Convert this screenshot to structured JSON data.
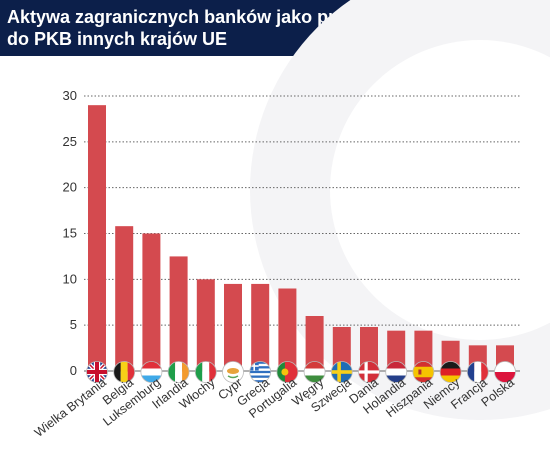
{
  "chart_data": {
    "type": "bar",
    "title_lines": [
      "Aktywa zagranicznych banków jako proporcja w stosunku",
      "do PKB innych krajów UE"
    ],
    "xlabel": "",
    "ylabel": "",
    "ylim": [
      0,
      30
    ],
    "yticks": [
      0,
      5,
      10,
      15,
      20,
      25,
      30
    ],
    "grid": true,
    "legend": "none",
    "bar_color": "#d44a4f",
    "categories": [
      "Wielka Brytania",
      "Belgia",
      "Luksemburg",
      "Irlandia",
      "Włochy",
      "Cypr",
      "Grecja",
      "Portugalia",
      "Węgry",
      "Szwecja",
      "Dania",
      "Holandia",
      "Hiszpania",
      "Niemcy",
      "Francja",
      "Polska"
    ],
    "values": [
      29,
      15.8,
      15,
      12.5,
      10,
      9.5,
      9.5,
      9,
      6,
      4.8,
      4.8,
      4.4,
      4.4,
      3.3,
      2.8,
      2.8
    ],
    "flags": [
      "flag-united-kingdom-icon",
      "flag-belgium-icon",
      "flag-luxembourg-icon",
      "flag-ireland-icon",
      "flag-italy-icon",
      "flag-cyprus-icon",
      "flag-greece-icon",
      "flag-portugal-icon",
      "flag-hungary-icon",
      "flag-sweden-icon",
      "flag-denmark-icon",
      "flag-netherlands-icon",
      "flag-spain-icon",
      "flag-germany-icon",
      "flag-france-icon",
      "flag-poland-icon"
    ]
  }
}
